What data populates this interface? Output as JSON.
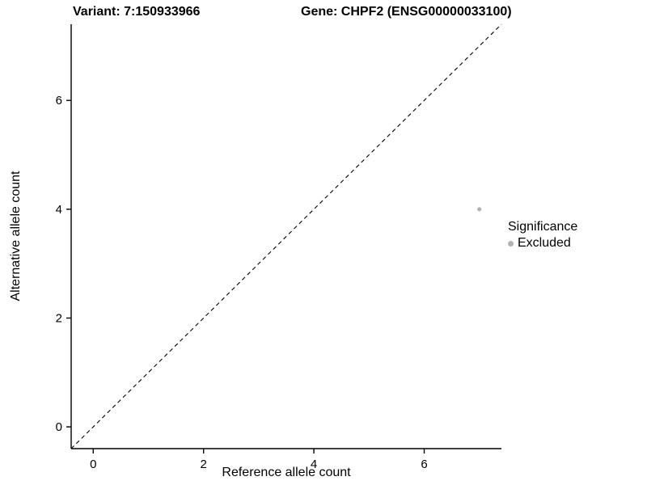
{
  "chart_data": {
    "type": "scatter",
    "titles": {
      "left": "Variant: 7:150933966",
      "right": "Gene: CHPF2 (ENSG00000033100)"
    },
    "xlabel": "Reference allele count",
    "ylabel": "Alternative allele count",
    "xlim": [
      -0.4,
      7.4
    ],
    "ylim": [
      -0.4,
      7.4
    ],
    "xticks": [
      0,
      2,
      4,
      6
    ],
    "yticks": [
      0,
      2,
      4,
      6
    ],
    "grid": false,
    "points": [
      {
        "x": 7,
        "y": 4,
        "series": "Excluded"
      }
    ],
    "reference_line": {
      "type": "identity",
      "style": "dashed",
      "color": "#000000",
      "from": [
        -0.4,
        -0.4
      ],
      "to": [
        7.4,
        7.4
      ]
    },
    "legend": {
      "title": "Significance",
      "position": "right",
      "entries": [
        {
          "label": "Excluded",
          "color": "#b3b3b3",
          "marker": "circle"
        }
      ]
    },
    "colors": {
      "axis": "#000000",
      "tick_text": "#000000",
      "point": "#b3b3b3",
      "background": "#ffffff"
    }
  }
}
